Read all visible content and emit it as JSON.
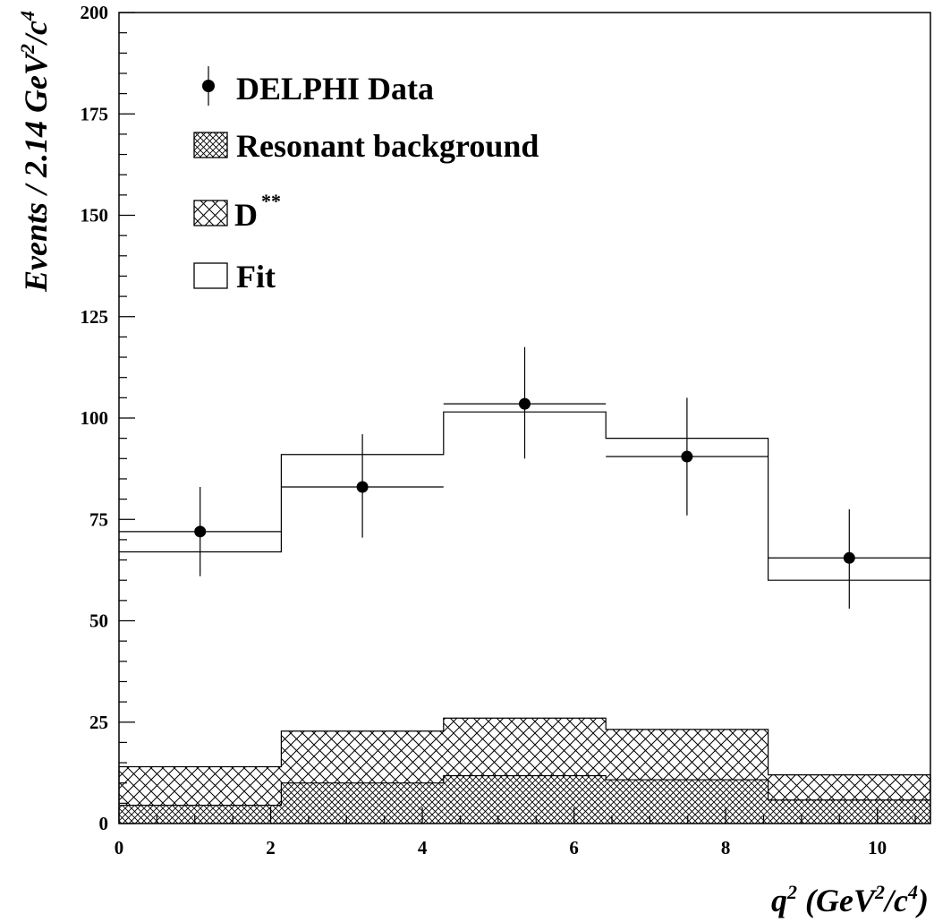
{
  "chart_data": {
    "type": "bar",
    "xlabel": "q",
    "xlabel_sup": "2",
    "xlabel_unit_parts": [
      "(GeV",
      "2",
      "/c",
      "4",
      ")"
    ],
    "ylabel_parts": [
      "Events / 2.14 GeV",
      "2",
      "/c",
      "4"
    ],
    "xlim": [
      0,
      10.7
    ],
    "ylim": [
      0,
      200
    ],
    "xticks": [
      0,
      2,
      4,
      6,
      8,
      10
    ],
    "yticks": [
      0,
      25,
      50,
      75,
      100,
      125,
      150,
      175,
      200
    ],
    "bin_edges": [
      0,
      2.14,
      4.28,
      6.42,
      8.56,
      10.7
    ],
    "series": [
      {
        "name": "DELPHI Data",
        "kind": "points",
        "x": [
          1.07,
          3.21,
          5.35,
          7.49,
          9.63
        ],
        "values": [
          72,
          83,
          103.5,
          90.5,
          65.5
        ],
        "err_low": [
          11,
          12.5,
          13.5,
          14.5,
          12.5
        ],
        "err_high": [
          11,
          13,
          14,
          14.5,
          12
        ]
      },
      {
        "name": "Resonant background",
        "kind": "hatch-cross",
        "values": [
          4.5,
          10,
          11.8,
          10.8,
          5.8
        ]
      },
      {
        "name": "D",
        "name_sup": "**",
        "kind": "hatch-diag",
        "values": [
          14,
          22.8,
          26,
          23.2,
          12
        ]
      },
      {
        "name": "Fit",
        "kind": "step",
        "values": [
          67,
          91,
          101.5,
          95,
          60
        ]
      }
    ],
    "legend_position": "top-left"
  }
}
